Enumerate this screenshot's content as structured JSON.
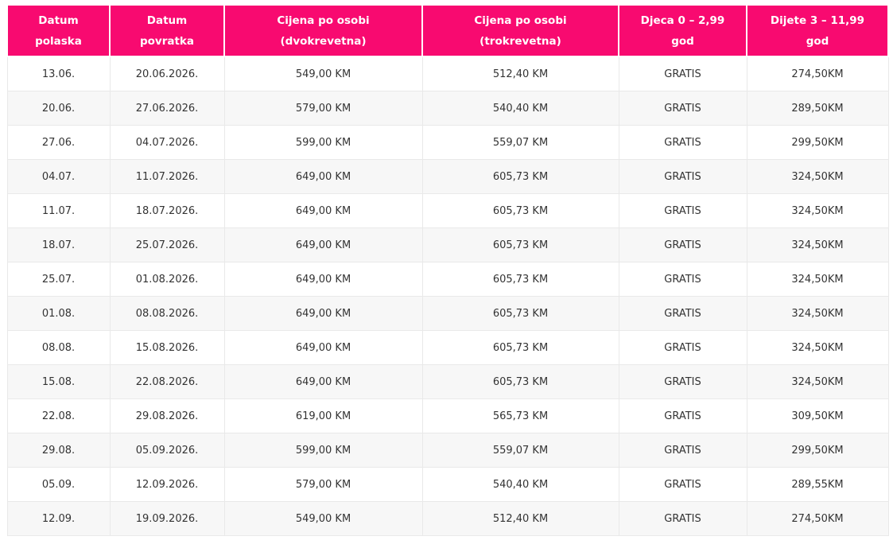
{
  "theme": {
    "header_bg": "#f80a70",
    "header_text": "#ffffff",
    "row_bg": "#ffffff",
    "row_alt_bg": "#f7f7f7",
    "border_color": "#e9e9e9",
    "body_text": "#333333"
  },
  "table": {
    "headers": [
      {
        "line1": "Datum",
        "line2": "polaska"
      },
      {
        "line1": "Datum",
        "line2": "povratka"
      },
      {
        "line1": "Cijena po osobi",
        "line2": "(dvokrevetna)"
      },
      {
        "line1": "Cijena po osobi",
        "line2": "(trokrevetna)"
      },
      {
        "line1": "Djeca 0 – 2,99",
        "line2": "god"
      },
      {
        "line1": "Dijete 3 – 11,99",
        "line2": "god"
      }
    ],
    "rows": [
      [
        "13.06.",
        "20.06.2026.",
        "549,00 KM",
        "512,40 KM",
        "GRATIS",
        "274,50KM"
      ],
      [
        "20.06.",
        "27.06.2026.",
        "579,00 KM",
        "540,40 KM",
        "GRATIS",
        "289,50KM"
      ],
      [
        "27.06.",
        "04.07.2026.",
        "599,00 KM",
        "559,07 KM",
        "GRATIS",
        "299,50KM"
      ],
      [
        "04.07.",
        "11.07.2026.",
        "649,00 KM",
        "605,73 KM",
        "GRATIS",
        "324,50KM"
      ],
      [
        "11.07.",
        "18.07.2026.",
        "649,00 KM",
        "605,73 KM",
        "GRATIS",
        "324,50KM"
      ],
      [
        "18.07.",
        "25.07.2026.",
        "649,00 KM",
        "605,73 KM",
        "GRATIS",
        "324,50KM"
      ],
      [
        "25.07.",
        "01.08.2026.",
        "649,00 KM",
        "605,73 KM",
        "GRATIS",
        "324,50KM"
      ],
      [
        "01.08.",
        "08.08.2026.",
        "649,00 KM",
        "605,73 KM",
        "GRATIS",
        "324,50KM"
      ],
      [
        "08.08.",
        "15.08.2026.",
        "649,00 KM",
        "605,73 KM",
        "GRATIS",
        "324,50KM"
      ],
      [
        "15.08.",
        "22.08.2026.",
        "649,00 KM",
        "605,73 KM",
        "GRATIS",
        "324,50KM"
      ],
      [
        "22.08.",
        "29.08.2026.",
        "619,00 KM",
        "565,73 KM",
        "GRATIS",
        "309,50KM"
      ],
      [
        "29.08.",
        "05.09.2026.",
        "599,00 KM",
        "559,07 KM",
        "GRATIS",
        "299,50KM"
      ],
      [
        "05.09.",
        "12.09.2026.",
        "579,00 KM",
        "540,40 KM",
        "GRATIS",
        "289,55KM"
      ],
      [
        "12.09.",
        "19.09.2026.",
        "549,00 KM",
        "512,40 KM",
        "GRATIS",
        "274,50KM"
      ]
    ]
  }
}
